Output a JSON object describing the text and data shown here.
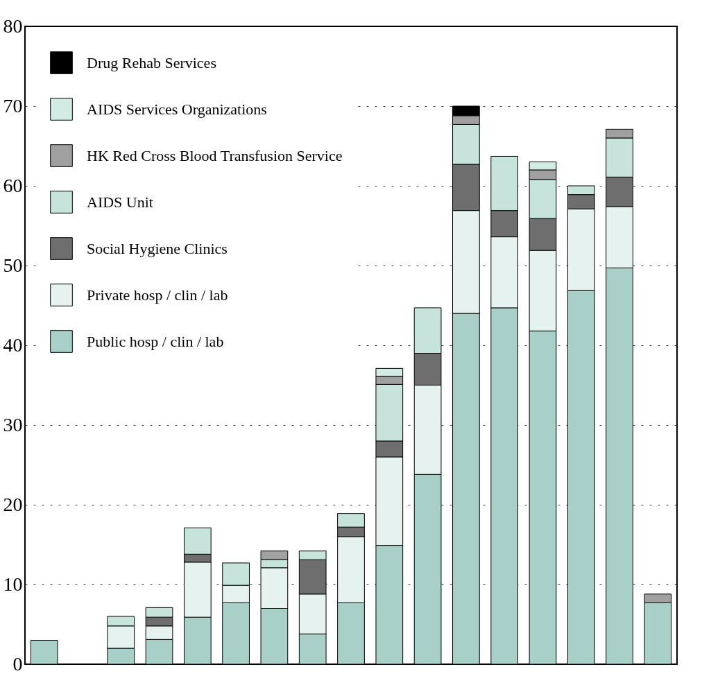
{
  "chart_data": {
    "type": "bar",
    "stacked": true,
    "categories": [
      null,
      null,
      null,
      null,
      null,
      null,
      null,
      null,
      null,
      null,
      null,
      null,
      null,
      null,
      null,
      null,
      null
    ],
    "ylim": [
      0,
      80
    ],
    "yticks": [
      0,
      10,
      20,
      30,
      40,
      50,
      60,
      70,
      80
    ],
    "grid": "y",
    "legend": "top left",
    "tick_labels": "y",
    "series": [
      {
        "name": "Public hosp / clin / lab",
        "color": "#a8d0c8",
        "values": [
          3.0,
          null,
          2.0,
          3.1,
          5.9,
          7.7,
          7.0,
          3.8,
          7.7,
          14.9,
          23.8,
          44.0,
          44.7,
          41.8,
          46.9,
          49.7,
          7.7
        ]
      },
      {
        "name": "Private hosp / clin / lab",
        "color": "#e6f2ef",
        "values": [
          null,
          null,
          2.8,
          1.7,
          6.9,
          2.2,
          5.1,
          5.0,
          8.3,
          11.1,
          11.2,
          12.9,
          8.9,
          10.1,
          10.2,
          7.7,
          null
        ]
      },
      {
        "name": "Social Hygiene Clinics",
        "color": "#6e6e6e",
        "values": [
          null,
          null,
          null,
          1.1,
          1.0,
          null,
          null,
          4.3,
          1.2,
          2.0,
          4.0,
          5.8,
          3.3,
          4.0,
          1.8,
          3.7,
          null
        ]
      },
      {
        "name": "AIDS Unit",
        "color": "#c6e3dc",
        "values": [
          null,
          null,
          1.2,
          1.2,
          3.3,
          2.8,
          1.0,
          1.1,
          1.7,
          7.1,
          5.7,
          5.0,
          6.8,
          4.9,
          1.1,
          4.9,
          null
        ]
      },
      {
        "name": "HK Red Cross Blood Transfusion Service",
        "color": "#a0a0a0",
        "values": [
          null,
          null,
          null,
          null,
          null,
          null,
          1.1,
          null,
          null,
          1.0,
          null,
          1.1,
          null,
          1.2,
          null,
          1.1,
          1.1
        ]
      },
      {
        "name": "AIDS Services Organizations",
        "color": "#d3ebe5",
        "values": [
          null,
          null,
          null,
          null,
          null,
          null,
          null,
          null,
          null,
          1.0,
          null,
          null,
          null,
          1.0,
          null,
          null,
          null
        ]
      },
      {
        "name": "Drug Rehab Services",
        "color": "#000000",
        "values": [
          null,
          null,
          null,
          null,
          null,
          null,
          null,
          null,
          null,
          null,
          null,
          1.2,
          null,
          null,
          null,
          null,
          null
        ]
      }
    ]
  }
}
